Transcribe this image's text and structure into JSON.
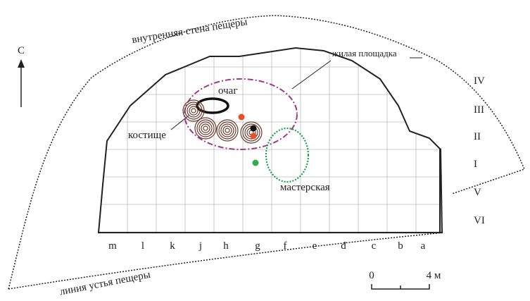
{
  "north": "С",
  "labels": {
    "inner_wall": "внутренняя стена пещеры",
    "entrance_line": "линия устья пещеры",
    "living_area": "жилая площадка",
    "hearth": "очаг",
    "bone_pile": "костище",
    "workshop": "мастерская"
  },
  "rows": [
    "IV",
    "III",
    "II",
    "I",
    "V",
    "VI"
  ],
  "columns": [
    "m",
    "l",
    "k",
    "j",
    "h",
    "g",
    "f",
    "e",
    "d",
    "c",
    "b",
    "a"
  ],
  "scale": {
    "start": "0",
    "end": "4 м"
  }
}
